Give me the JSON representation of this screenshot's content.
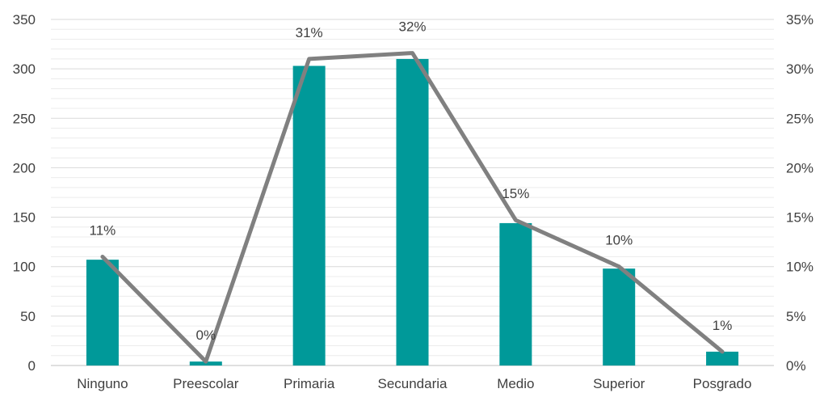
{
  "chart_data": {
    "type": "bar",
    "categories": [
      "Ninguno",
      "Preescolar",
      "Primaria",
      "Secundaria",
      "Medio",
      "Superior",
      "Posgrado"
    ],
    "series": [
      {
        "type": "bar",
        "axis": "left",
        "color": "#009999",
        "values": [
          107,
          4,
          303,
          310,
          144,
          98,
          14
        ]
      },
      {
        "type": "line",
        "axis": "right",
        "color": "#808080",
        "values": [
          11,
          0.4,
          31,
          31.6,
          14.7,
          10,
          1.4
        ],
        "labels": [
          "11%",
          "0%",
          "31%",
          "32%",
          "15%",
          "10%",
          "1%"
        ]
      }
    ],
    "ylim": [
      0,
      350
    ],
    "y_ticks": [
      "0",
      "50",
      "100",
      "150",
      "200",
      "250",
      "300",
      "350"
    ],
    "y2lim": [
      0,
      35
    ],
    "y2_ticks": [
      "0%",
      "5%",
      "10%",
      "15%",
      "20%",
      "25%",
      "30%",
      "35%"
    ],
    "grid": true,
    "legend": "none"
  }
}
